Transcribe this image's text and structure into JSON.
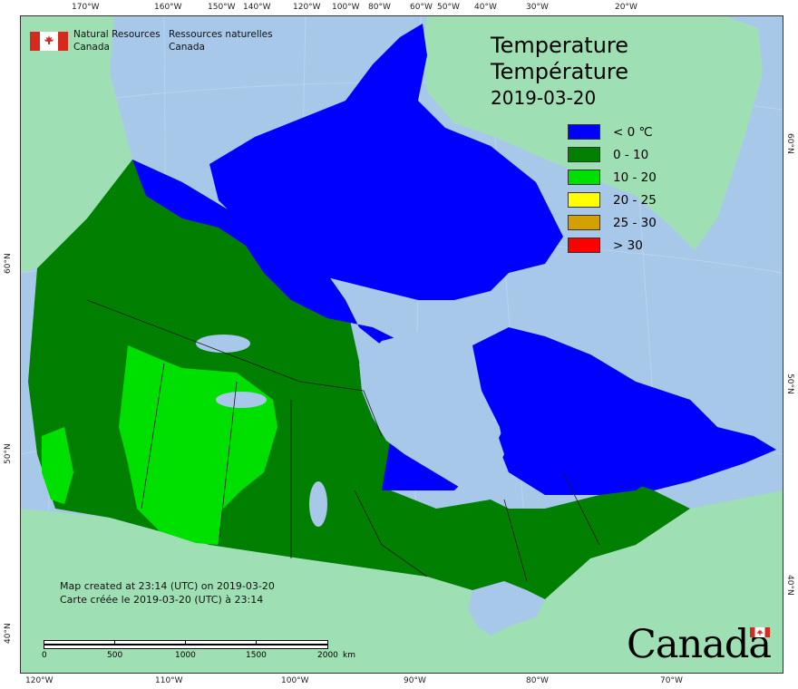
{
  "agency": {
    "name_en_line1": "Natural Resources",
    "name_en_line2": "Canada",
    "name_fr_line1": "Ressources naturelles",
    "name_fr_line2": "Canada"
  },
  "title": {
    "en": "Temperature",
    "fr": "Température",
    "date": "2019-03-20"
  },
  "legend": [
    {
      "label": "< 0 ℃",
      "color": "#0000ff"
    },
    {
      "label": "0 - 10",
      "color": "#007f00"
    },
    {
      "label": "10 - 20",
      "color": "#00e000"
    },
    {
      "label": "20 - 25",
      "color": "#ffff00"
    },
    {
      "label": "25 - 30",
      "color": "#d4a000"
    },
    {
      "label": "> 30",
      "color": "#ff0000"
    }
  ],
  "credit": {
    "en": "Map created at 23:14 (UTC) on 2019-03-20",
    "fr": "Carte créée le 2019-03-20 (UTC) à 23:14"
  },
  "scale": {
    "labels": [
      "0",
      "500",
      "1000",
      "1500",
      "2000"
    ],
    "unit": "km"
  },
  "top_ticks": [
    "170°W",
    "160°W",
    "150°W",
    "140°W",
    "120°W",
    "100°W",
    "80°W",
    "60°W",
    "50°W",
    "40°W",
    "30°W",
    "20°W"
  ],
  "bottom_ticks": [
    "120°W",
    "110°W",
    "100°W",
    "90°W",
    "80°W",
    "70°W"
  ],
  "left_ticks": [
    "60°N",
    "50°N",
    "40°N"
  ],
  "right_ticks": [
    "60°N",
    "50°N",
    "40°N"
  ],
  "wordmark": "Canada",
  "colors": {
    "ocean": "#a8c8ea",
    "land_outside": "#9ee0b4",
    "lake": "#a8c8ea"
  }
}
